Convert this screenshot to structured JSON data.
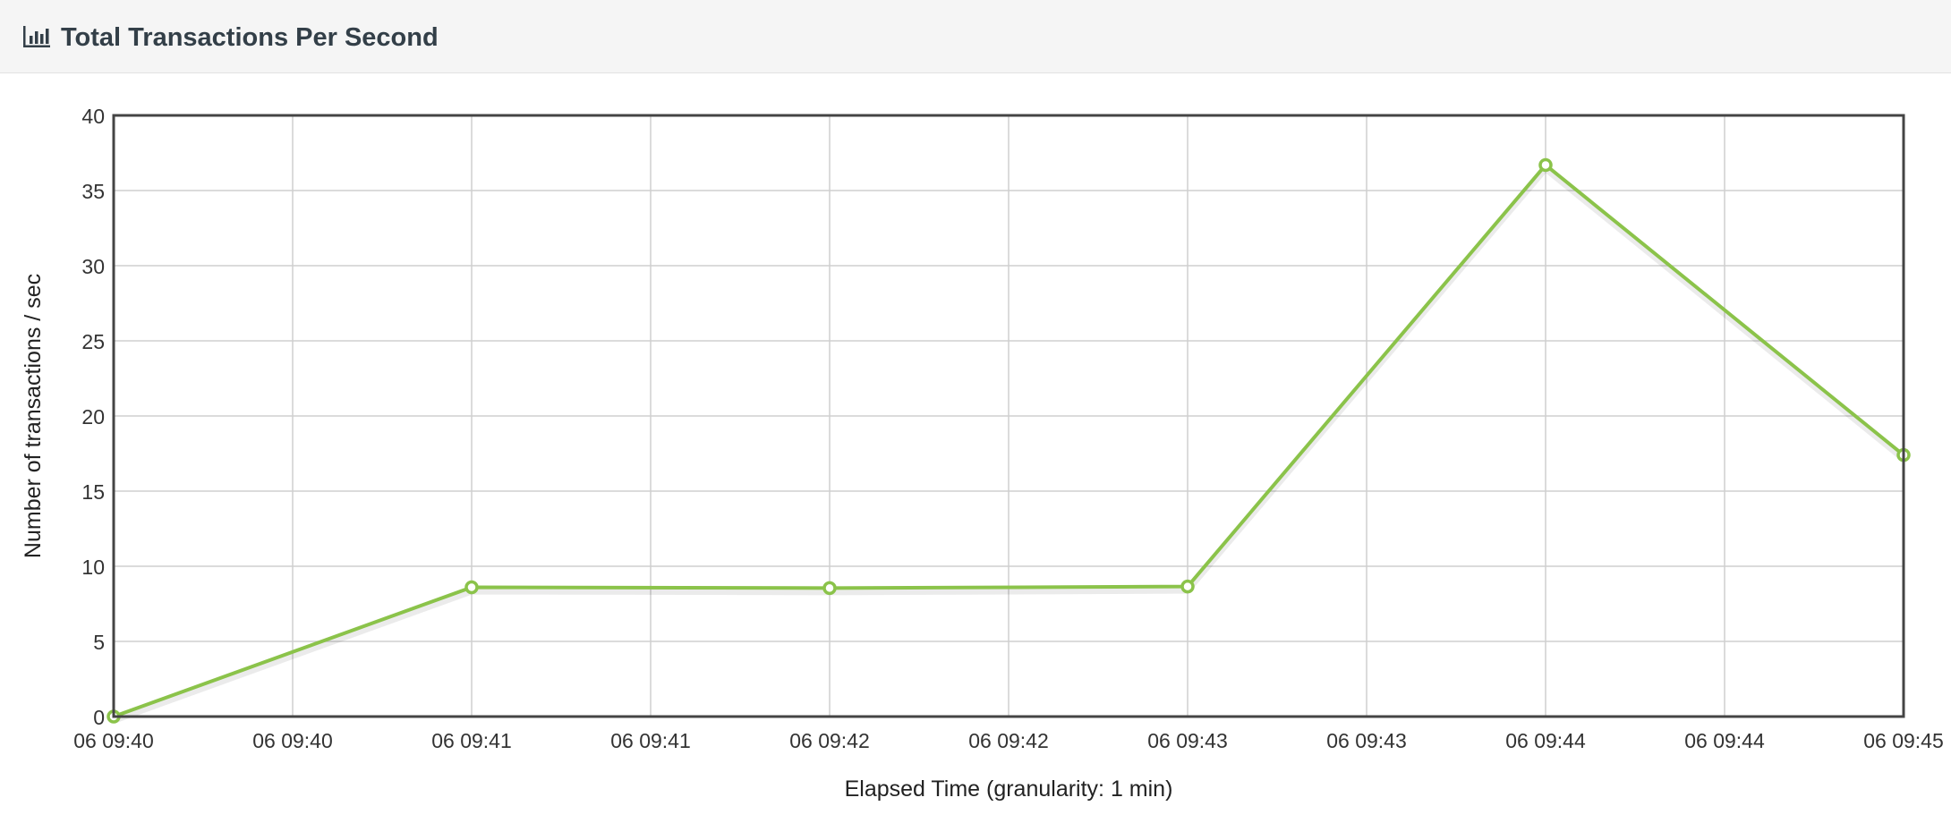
{
  "panel": {
    "title": "Total Transactions Per Second",
    "icon": "bar-chart-icon"
  },
  "chart_data": {
    "type": "line",
    "title": "Total Transactions Per Second",
    "xlabel": "Elapsed Time (granularity: 1 min)",
    "ylabel": "Number of transactions / sec",
    "ylim": [
      0,
      40
    ],
    "y_ticks": [
      0,
      5,
      10,
      15,
      20,
      25,
      30,
      35,
      40
    ],
    "x_tick_labels": [
      "06 09:40",
      "06 09:40",
      "06 09:41",
      "06 09:41",
      "06 09:42",
      "06 09:42",
      "06 09:43",
      "06 09:43",
      "06 09:44",
      "06 09:44",
      "06 09:45"
    ],
    "grid": true,
    "legend": "none",
    "series": [
      {
        "color": "#8bc34a",
        "x": [
          "06 09:40",
          "06 09:41",
          "06 09:42",
          "06 09:43",
          "06 09:44",
          "06 09:45"
        ],
        "values": [
          0,
          8.6,
          8.55,
          8.65,
          36.7,
          17.4
        ]
      }
    ]
  }
}
